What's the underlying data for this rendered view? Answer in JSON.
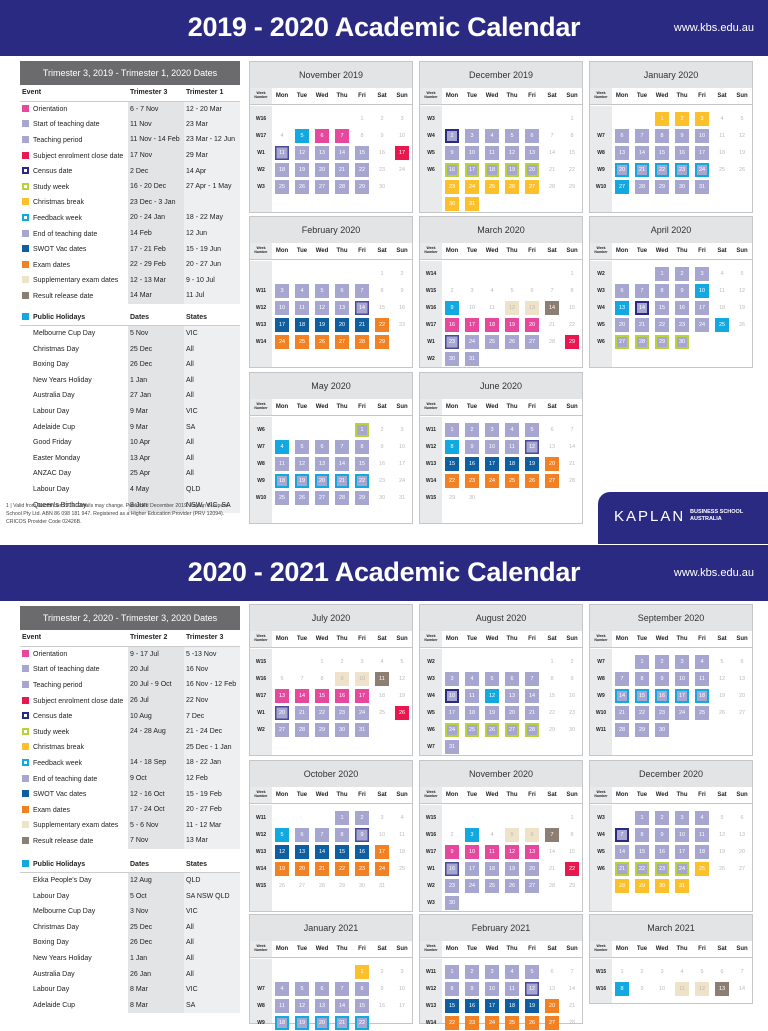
{
  "header1": {
    "title": "2019 - 2020 Academic Calendar",
    "url": "www.kbs.edu.au"
  },
  "header2": {
    "title": "2020 - 2021 Academic Calendar",
    "url": "www.kbs.edu.au"
  },
  "colors": {
    "brand": "#2b2a82",
    "teaching": "#a6a6d0",
    "orientation": "#e5489d",
    "enrolment_close": "#e8184f",
    "christmas": "#fcc02b",
    "public_holiday": "#12a8e0",
    "swot": "#0f5e9f",
    "exam": "#f28123",
    "supplementary": "#eee2c8",
    "result": "#8c7e73",
    "study_week": "#b7d23a"
  },
  "legend1": {
    "title": "Trimester 3, 2019 - Trimester 1, 2020 Dates",
    "headers": [
      "Event",
      "Trimester 3",
      "Trimester 1"
    ],
    "rows": [
      {
        "event": "Orientation",
        "a": "6 - 7 Nov",
        "b": "12 - 20 Mar",
        "sw": "ori"
      },
      {
        "event": "Start of teaching date",
        "a": "11 Nov",
        "b": "23 Mar",
        "sw": "t"
      },
      {
        "event": "Teaching period",
        "a": "11 Nov - 14 Feb",
        "b": "23 Mar - 12 Jun",
        "sw": "t"
      },
      {
        "event": "Subject enrolment close date",
        "a": "17 Nov",
        "b": "29 Mar",
        "sw": "enr"
      },
      {
        "event": "Census date",
        "a": "2 Dec",
        "b": "14 Apr",
        "sw": "cen"
      },
      {
        "event": "Study week",
        "a": "16 - 20 Dec",
        "b": "27 Apr - 1 May",
        "sw": "stu"
      },
      {
        "event": "Christmas break",
        "a": "23 Dec - 3 Jan",
        "b": "",
        "sw": "xm"
      },
      {
        "event": "Feedback week",
        "a": "20 - 24 Jan",
        "b": "18 - 22 May",
        "sw": "fbw"
      },
      {
        "event": "End of teaching date",
        "a": "14 Feb",
        "b": "12 Jun",
        "sw": "t"
      },
      {
        "event": "SWOT Vac dates",
        "a": "17 - 21 Feb",
        "b": "15 - 19 Jun",
        "sw": "sw2"
      },
      {
        "event": "Exam dates",
        "a": "22 - 29 Feb",
        "b": "20 - 27 Jun",
        "sw": "ex"
      },
      {
        "event": "Supplementary exam dates",
        "a": "12 - 13 Mar",
        "b": "9 - 10 Jul",
        "sw": "sup"
      },
      {
        "event": "Result release date",
        "a": "14 Mar",
        "b": "11 Jul",
        "sw": "res"
      }
    ],
    "holidays_headers": [
      "Public Holidays",
      "Dates",
      "States"
    ],
    "holidays": [
      [
        "Melbourne Cup Day",
        "5 Nov",
        "VIC"
      ],
      [
        "Christmas Day",
        "25 Dec",
        "All"
      ],
      [
        "Boxing Day",
        "26 Dec",
        "All"
      ],
      [
        "New Years Holiday",
        "1 Jan",
        "All"
      ],
      [
        "Australia Day",
        "27 Jan",
        "All"
      ],
      [
        "Labour Day",
        "9 Mar",
        "VIC"
      ],
      [
        "Adelaide Cup",
        "9 Mar",
        "SA"
      ],
      [
        "Good Friday",
        "10 Apr",
        "All"
      ],
      [
        "Easter Monday",
        "13 Apr",
        "All"
      ],
      [
        "ANZAC Day",
        "25 Apr",
        "All"
      ],
      [
        "Labour Day",
        "4 May",
        "QLD"
      ],
      [
        "Queen's Birthday",
        "8 Jun",
        "NSW, VIC, SA"
      ]
    ],
    "footnote": "1 |  Valid from December 2019. Details may change. Published December 2019. Kaplan Business School Pty Ltd. ABN 86 098 181 947. Registered as a Higher Education Provider (PRV 12094). CRICOS Provider Code 02426B."
  },
  "legend2": {
    "title": "Trimester 2, 2020 - Trimester 3, 2020 Dates",
    "headers": [
      "Event",
      "Trimester 2",
      "Trimester 3"
    ],
    "rows": [
      {
        "event": "Orientation",
        "a": "9 - 17 Jul",
        "b": "5 -13 Nov",
        "sw": "ori"
      },
      {
        "event": "Start of teaching date",
        "a": "20 Jul",
        "b": "16 Nov",
        "sw": "t"
      },
      {
        "event": "Teaching period",
        "a": "20 Jul - 9 Oct",
        "b": "16 Nov - 12 Feb",
        "sw": "t"
      },
      {
        "event": "Subject enrolment close date",
        "a": "26 Jul",
        "b": "22 Nov",
        "sw": "enr"
      },
      {
        "event": "Census date",
        "a": "10 Aug",
        "b": "7 Dec",
        "sw": "cen"
      },
      {
        "event": "Study week",
        "a": "24 - 28 Aug",
        "b": "21 - 24 Dec",
        "sw": "stu"
      },
      {
        "event": "Christmas break",
        "a": "",
        "b": "25 Dec - 1 Jan",
        "sw": "xm"
      },
      {
        "event": "Feedback week",
        "a": "14 - 18 Sep",
        "b": "18 - 22 Jan",
        "sw": "fbw"
      },
      {
        "event": "End of teaching date",
        "a": "9 Oct",
        "b": "12 Feb",
        "sw": "t"
      },
      {
        "event": "SWOT Vac dates",
        "a": "12 - 16 Oct",
        "b": "15 - 19 Feb",
        "sw": "sw2"
      },
      {
        "event": "Exam dates",
        "a": "17 - 24 Oct",
        "b": "20 - 27 Feb",
        "sw": "ex"
      },
      {
        "event": "Supplementary exam dates",
        "a": "5 - 6 Nov",
        "b": "11 - 12 Mar",
        "sw": "sup"
      },
      {
        "event": "Result release date",
        "a": "7 Nov",
        "b": "13 Mar",
        "sw": "res"
      }
    ],
    "holidays_headers": [
      "Public Holidays",
      "Dates",
      "States"
    ],
    "holidays": [
      [
        "Ekka People's Day",
        "12 Aug",
        "QLD"
      ],
      [
        "Labour Day",
        "5 Oct",
        "SA NSW QLD"
      ],
      [
        "Melbourne Cup Day",
        "3 Nov",
        "VIC"
      ],
      [
        "Christmas Day",
        "25 Dec",
        "All"
      ],
      [
        "Boxing Day",
        "26 Dec",
        "All"
      ],
      [
        "New Years Holiday",
        "1 Jan",
        "All"
      ],
      [
        "Australia Day",
        "26 Jan",
        "All"
      ],
      [
        "Labour Day",
        "8 Mar",
        "VIC"
      ],
      [
        "Adelaide Cup",
        "8 Mar",
        "SA"
      ]
    ]
  },
  "weekday_labels": [
    "Mon",
    "Tue",
    "Wed",
    "Thu",
    "Fri",
    "Sat",
    "Sun"
  ],
  "week_number_label": "Week Number",
  "logo": {
    "name": "KAPLAN",
    "sub1": "BUSINESS SCHOOL",
    "sub2": "AUSTRALIA"
  },
  "months": [
    {
      "name": "November 2019",
      "start": 4,
      "days": 30,
      "weeks": [
        "W16",
        "W17",
        "W1",
        "W2",
        "W3"
      ],
      "marks": {
        "5": "fb",
        "6": "ori",
        "7": "ori",
        "11": "t st",
        "12": "t",
        "13": "t",
        "14": "t",
        "15": "t",
        "17": "enr",
        "18": "t",
        "19": "t",
        "20": "t",
        "21": "t",
        "22": "t",
        "25": "t",
        "26": "t",
        "27": "t",
        "28": "t",
        "29": "t"
      }
    },
    {
      "name": "December 2019",
      "start": 6,
      "days": 31,
      "weeks": [
        "W3",
        "W4",
        "W5",
        "W6",
        "",
        ""
      ],
      "marks": {
        "2": "t cen",
        "3": "t",
        "4": "t",
        "5": "t",
        "6": "t",
        "9": "t",
        "10": "t",
        "11": "t",
        "12": "t",
        "13": "t",
        "16": "t stu",
        "17": "t stu",
        "18": "t stu",
        "19": "t stu",
        "20": "t stu",
        "23": "xm",
        "24": "xm",
        "25": "xm",
        "26": "xm",
        "27": "xm",
        "30": "xm",
        "31": "xm"
      }
    },
    {
      "name": "January 2020",
      "start": 2,
      "days": 31,
      "weeks": [
        "",
        "W7",
        "W8",
        "W9",
        "W10"
      ],
      "marks": {
        "1": "xm",
        "2": "xm",
        "3": "xm",
        "6": "t",
        "7": "t",
        "8": "t",
        "9": "t",
        "10": "t",
        "13": "t",
        "14": "t",
        "15": "t",
        "16": "t",
        "17": "t",
        "20": "t fbw",
        "21": "t fbw",
        "22": "t fbw",
        "23": "t fbw",
        "24": "t fbw",
        "27": "fb",
        "28": "t",
        "29": "t",
        "30": "t",
        "31": "t"
      }
    },
    {
      "name": "February 2020",
      "start": 5,
      "days": 29,
      "weeks": [
        "",
        "W11",
        "W12",
        "W13",
        "W14"
      ],
      "marks": {
        "3": "t",
        "4": "t",
        "5": "t",
        "6": "t",
        "7": "t",
        "10": "t",
        "11": "t",
        "12": "t",
        "13": "t",
        "14": "t en",
        "17": "sw2",
        "18": "sw2",
        "19": "sw2",
        "20": "sw2",
        "21": "sw2",
        "22": "ex",
        "24": "ex",
        "25": "ex",
        "26": "ex",
        "27": "ex",
        "28": "ex",
        "29": "ex"
      }
    },
    {
      "name": "March 2020",
      "start": 6,
      "days": 31,
      "weeks": [
        "W14",
        "W15",
        "W16",
        "W17",
        "W1",
        "W2"
      ],
      "marks": {
        "9": "fb",
        "12": "sup",
        "13": "sup",
        "14": "res",
        "16": "ori",
        "17": "ori",
        "18": "ori",
        "19": "ori",
        "20": "ori",
        "23": "t st",
        "24": "t",
        "25": "t",
        "26": "t",
        "27": "t",
        "29": "enr",
        "30": "t",
        "31": "t"
      }
    },
    {
      "name": "April 2020",
      "start": 2,
      "days": 30,
      "weeks": [
        "W2",
        "W3",
        "W4",
        "W5",
        "W6"
      ],
      "marks": {
        "1": "t",
        "2": "t",
        "3": "t",
        "6": "t",
        "7": "t",
        "8": "t",
        "9": "t",
        "10": "fb",
        "13": "fb",
        "14": "t cen",
        "15": "t",
        "16": "t",
        "17": "t",
        "20": "t",
        "21": "t",
        "22": "t",
        "23": "t",
        "24": "t",
        "25": "fb",
        "27": "t stu",
        "28": "t stu",
        "29": "t stu",
        "30": "t stu"
      }
    },
    {
      "name": "May 2020",
      "start": 4,
      "days": 31,
      "weeks": [
        "W6",
        "W7",
        "W8",
        "W9",
        "W10"
      ],
      "marks": {
        "1": "t stu",
        "4": "fb",
        "5": "t",
        "6": "t",
        "7": "t",
        "8": "t",
        "11": "t",
        "12": "t",
        "13": "t",
        "14": "t",
        "15": "t",
        "18": "t fbw",
        "19": "t fbw",
        "20": "t fbw",
        "21": "t fbw",
        "22": "t fbw",
        "25": "t",
        "26": "t",
        "27": "t",
        "28": "t",
        "29": "t"
      }
    },
    {
      "name": "June 2020",
      "start": 0,
      "days": 30,
      "weeks": [
        "W11",
        "W12",
        "W13",
        "W14",
        "W15"
      ],
      "marks": {
        "1": "t",
        "2": "t",
        "3": "t",
        "4": "t",
        "5": "t",
        "8": "fb",
        "9": "t",
        "10": "t",
        "11": "t",
        "12": "t en",
        "15": "sw2",
        "16": "sw2",
        "17": "sw2",
        "18": "sw2",
        "19": "sw2",
        "20": "ex",
        "22": "ex",
        "23": "ex",
        "24": "ex",
        "25": "ex",
        "26": "ex",
        "27": "ex"
      }
    },
    {
      "name": "July 2020",
      "start": 2,
      "days": 31,
      "weeks": [
        "W15",
        "W16",
        "W17",
        "W1",
        "W2"
      ],
      "marks": {
        "9": "sup",
        "10": "sup",
        "11": "res",
        "13": "ori",
        "14": "ori",
        "15": "ori",
        "16": "ori",
        "17": "ori",
        "20": "t st",
        "21": "t",
        "22": "t",
        "23": "t",
        "24": "t",
        "26": "enr",
        "27": "t",
        "28": "t",
        "29": "t",
        "30": "t",
        "31": "t"
      }
    },
    {
      "name": "August 2020",
      "start": 5,
      "days": 31,
      "weeks": [
        "W2",
        "W3",
        "W4",
        "W5",
        "W6",
        "W7"
      ],
      "marks": {
        "3": "t",
        "4": "t",
        "5": "t",
        "6": "t",
        "7": "t",
        "10": "t cen",
        "11": "t",
        "12": "fb",
        "13": "t",
        "14": "t",
        "17": "t",
        "18": "t",
        "19": "t",
        "20": "t",
        "21": "t",
        "24": "t stu",
        "25": "t stu",
        "26": "t stu",
        "27": "t stu",
        "28": "t stu",
        "31": "t"
      }
    },
    {
      "name": "September 2020",
      "start": 1,
      "days": 30,
      "weeks": [
        "W7",
        "W8",
        "W9",
        "W10",
        "W11"
      ],
      "marks": {
        "1": "t",
        "2": "t",
        "3": "t",
        "4": "t",
        "7": "t",
        "8": "t",
        "9": "t",
        "10": "t",
        "11": "t",
        "14": "t fbw",
        "15": "t fbw",
        "16": "t fbw",
        "17": "t fbw",
        "18": "t fbw",
        "21": "t",
        "22": "t",
        "23": "t",
        "24": "t",
        "25": "t",
        "28": "t",
        "29": "t",
        "30": "t"
      }
    },
    {
      "name": "October 2020",
      "start": 3,
      "days": 31,
      "weeks": [
        "W11",
        "W12",
        "W13",
        "W14",
        "W15"
      ],
      "marks": {
        "1": "t",
        "2": "t",
        "5": "fb",
        "6": "t",
        "7": "t",
        "8": "t",
        "9": "t en",
        "12": "sw2",
        "13": "sw2",
        "14": "sw2",
        "15": "sw2",
        "16": "sw2",
        "17": "ex",
        "19": "ex",
        "20": "ex",
        "21": "ex",
        "22": "ex",
        "23": "ex",
        "24": "ex"
      }
    },
    {
      "name": "November 2020",
      "start": 6,
      "days": 30,
      "weeks": [
        "W15",
        "W16",
        "W17",
        "W1",
        "W2",
        "W3"
      ],
      "marks": {
        "3": "fb",
        "5": "sup",
        "6": "sup",
        "7": "res",
        "9": "ori",
        "10": "ori",
        "11": "ori",
        "12": "ori",
        "13": "ori",
        "16": "t st",
        "17": "t",
        "18": "t",
        "19": "t",
        "20": "t",
        "22": "enr",
        "23": "t",
        "24": "t",
        "25": "t",
        "26": "t",
        "27": "t",
        "30": "t"
      }
    },
    {
      "name": "December 2020",
      "start": 1,
      "days": 31,
      "weeks": [
        "W3",
        "W4",
        "W5",
        "W6",
        ""
      ],
      "marks": {
        "1": "t",
        "2": "t",
        "3": "t",
        "4": "t",
        "7": "t cen",
        "8": "t",
        "9": "t",
        "10": "t",
        "11": "t",
        "14": "t",
        "15": "t",
        "16": "t",
        "17": "t",
        "18": "t",
        "21": "t stu",
        "22": "t stu",
        "23": "t stu",
        "24": "t stu",
        "25": "xm",
        "28": "xm",
        "29": "xm",
        "30": "xm",
        "31": "xm"
      }
    },
    {
      "name": "January 2021",
      "start": 4,
      "days": 22,
      "weeks": [
        "",
        "W7",
        "W8",
        "W9"
      ],
      "marks": {
        "1": "xm",
        "4": "t",
        "5": "t",
        "6": "t",
        "7": "t",
        "8": "t",
        "11": "t",
        "12": "t",
        "13": "t",
        "14": "t",
        "15": "t",
        "18": "t fbw",
        "19": "t fbw",
        "20": "t fbw",
        "21": "t fbw",
        "22": "t fbw"
      }
    },
    {
      "name": "February 2021",
      "start": 0,
      "days": 28,
      "weeks": [
        "W11",
        "W12",
        "W13",
        "W14"
      ],
      "marks": {
        "1": "t",
        "2": "t",
        "3": "t",
        "4": "t",
        "5": "t",
        "8": "t",
        "9": "t",
        "10": "t",
        "11": "t",
        "12": "t en",
        "15": "sw2",
        "16": "sw2",
        "17": "sw2",
        "18": "sw2",
        "19": "sw2",
        "20": "ex",
        "22": "ex",
        "23": "ex",
        "24": "ex",
        "25": "ex",
        "26": "ex",
        "27": "ex"
      }
    },
    {
      "name": "March 2021",
      "start": 0,
      "days": 14,
      "weeks": [
        "W15",
        "W16"
      ],
      "marks": {
        "8": "fb",
        "11": "sup",
        "12": "sup",
        "13": "res"
      }
    }
  ]
}
